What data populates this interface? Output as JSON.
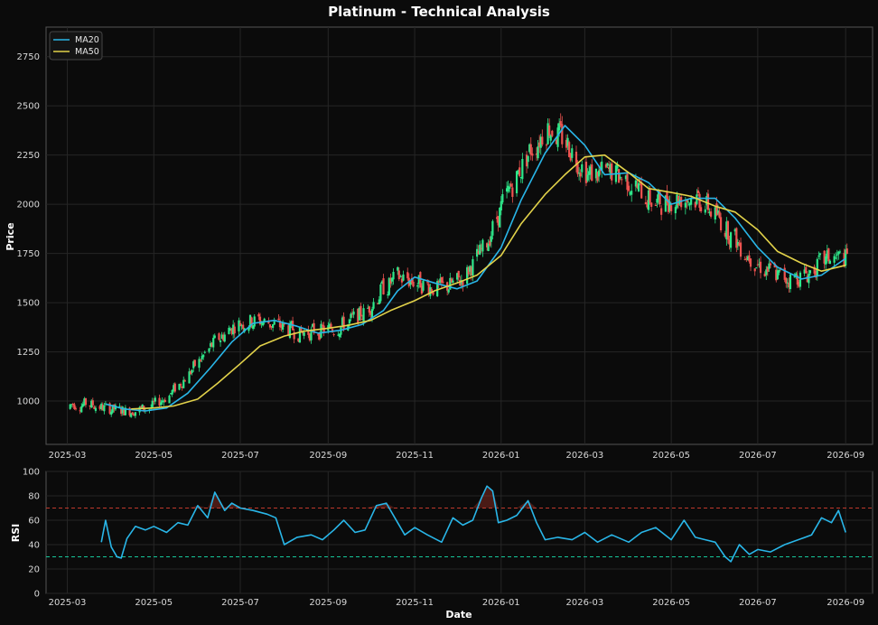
{
  "title": "Platinum - Technical Analysis",
  "colors": {
    "background": "#0b0b0b",
    "panel": "#0b0b0b",
    "up_candle": "#2ee88a",
    "down_candle": "#ef5350",
    "ma20": "#29b6e8",
    "ma50": "#e2d24a",
    "rsi": "#29b6e8",
    "overbought": "#c0392b",
    "oversold": "#16c79a"
  },
  "chart_data": [
    {
      "type": "candlestick",
      "ylabel": "Price",
      "xlabel": "",
      "ylim": [
        780,
        2900
      ],
      "xlim": [
        "2025-02-14",
        "2026-09-20"
      ],
      "yticks": [
        1000,
        1250,
        1500,
        1750,
        2000,
        2250,
        2500,
        2750
      ],
      "xticks": [
        "2025-03",
        "2025-05",
        "2025-07",
        "2025-09",
        "2025-11",
        "2026-01",
        "2026-03",
        "2026-05",
        "2026-07",
        "2026-09"
      ],
      "grid": true,
      "legend_position": "top-left",
      "series": [
        {
          "name": "MA20",
          "x": [
            "2025-03-28",
            "2025-04-10",
            "2025-04-25",
            "2025-05-10",
            "2025-05-25",
            "2025-06-10",
            "2025-06-25",
            "2025-07-10",
            "2025-07-25",
            "2025-08-10",
            "2025-08-25",
            "2025-09-10",
            "2025-09-25",
            "2025-10-10",
            "2025-10-20",
            "2025-11-01",
            "2025-11-15",
            "2025-12-01",
            "2025-12-15",
            "2026-01-01",
            "2026-01-15",
            "2026-02-01",
            "2026-02-15",
            "2026-03-01",
            "2026-03-15",
            "2026-04-01",
            "2026-04-15",
            "2026-05-01",
            "2026-05-15",
            "2026-06-01",
            "2026-06-15",
            "2026-07-01",
            "2026-07-15",
            "2026-08-01",
            "2026-08-15",
            "2026-09-01"
          ],
          "values": [
            985,
            960,
            950,
            965,
            1040,
            1170,
            1300,
            1395,
            1410,
            1380,
            1345,
            1360,
            1390,
            1460,
            1560,
            1630,
            1600,
            1570,
            1610,
            1780,
            2020,
            2260,
            2400,
            2300,
            2150,
            2160,
            2110,
            2000,
            2030,
            2030,
            1930,
            1780,
            1680,
            1620,
            1640,
            1725
          ]
        },
        {
          "name": "MA50",
          "x": [
            "2025-04-15",
            "2025-05-01",
            "2025-05-15",
            "2025-06-01",
            "2025-06-15",
            "2025-07-01",
            "2025-07-15",
            "2025-08-01",
            "2025-08-15",
            "2025-09-01",
            "2025-09-15",
            "2025-10-01",
            "2025-10-15",
            "2025-11-01",
            "2025-11-15",
            "2025-12-01",
            "2025-12-15",
            "2026-01-01",
            "2026-01-15",
            "2026-02-01",
            "2026-02-15",
            "2026-03-01",
            "2026-03-15",
            "2026-04-01",
            "2026-04-15",
            "2026-05-01",
            "2026-05-15",
            "2026-06-01",
            "2026-06-15",
            "2026-07-01",
            "2026-07-15",
            "2026-08-01",
            "2026-08-15",
            "2026-09-01"
          ],
          "values": [
            960,
            965,
            975,
            1010,
            1090,
            1190,
            1280,
            1330,
            1355,
            1370,
            1385,
            1410,
            1460,
            1510,
            1560,
            1600,
            1640,
            1740,
            1900,
            2050,
            2150,
            2240,
            2250,
            2160,
            2080,
            2060,
            2040,
            1990,
            1960,
            1870,
            1760,
            1700,
            1660,
            1690
          ]
        }
      ]
    },
    {
      "type": "line",
      "ylabel": "RSI",
      "xlabel": "Date",
      "ylim": [
        0,
        100
      ],
      "yticks": [
        0,
        20,
        40,
        60,
        80,
        100
      ],
      "xticks": [
        "2025-03",
        "2025-05",
        "2025-07",
        "2025-09",
        "2025-11",
        "2026-01",
        "2026-03",
        "2026-05",
        "2026-07",
        "2026-09"
      ],
      "reference_lines": [
        70,
        30
      ],
      "series": [
        {
          "name": "",
          "x": [
            "2025-03-25",
            "2025-03-28",
            "2025-04-01",
            "2025-04-05",
            "2025-04-08",
            "2025-04-12",
            "2025-04-18",
            "2025-04-25",
            "2025-05-01",
            "2025-05-10",
            "2025-05-18",
            "2025-05-25",
            "2025-06-01",
            "2025-06-08",
            "2025-06-13",
            "2025-06-20",
            "2025-06-25",
            "2025-07-01",
            "2025-07-10",
            "2025-07-20",
            "2025-07-26",
            "2025-08-01",
            "2025-08-10",
            "2025-08-20",
            "2025-08-28",
            "2025-09-05",
            "2025-09-12",
            "2025-09-20",
            "2025-09-27",
            "2025-10-05",
            "2025-10-12",
            "2025-10-18",
            "2025-10-25",
            "2025-11-01",
            "2025-11-10",
            "2025-11-20",
            "2025-11-28",
            "2025-12-05",
            "2025-12-12",
            "2025-12-18",
            "2025-12-22",
            "2025-12-26",
            "2025-12-30",
            "2026-01-05",
            "2026-01-12",
            "2026-01-20",
            "2026-01-26",
            "2026-02-01",
            "2026-02-10",
            "2026-02-20",
            "2026-03-01",
            "2026-03-10",
            "2026-03-20",
            "2026-04-01",
            "2026-04-10",
            "2026-04-20",
            "2026-05-01",
            "2026-05-10",
            "2026-05-18",
            "2026-05-25",
            "2026-06-01",
            "2026-06-08",
            "2026-06-12",
            "2026-06-18",
            "2026-06-25",
            "2026-07-01",
            "2026-07-10",
            "2026-07-20",
            "2026-08-01",
            "2026-08-08",
            "2026-08-15",
            "2026-08-22",
            "2026-08-27",
            "2026-09-01"
          ],
          "values": [
            42,
            60,
            38,
            30,
            29,
            45,
            55,
            52,
            55,
            50,
            58,
            56,
            72,
            62,
            83,
            68,
            74,
            70,
            68,
            65,
            62,
            40,
            46,
            48,
            44,
            52,
            60,
            50,
            52,
            72,
            74,
            62,
            48,
            54,
            48,
            42,
            62,
            56,
            60,
            78,
            88,
            84,
            58,
            60,
            64,
            76,
            58,
            44,
            46,
            44,
            50,
            42,
            48,
            42,
            50,
            54,
            44,
            60,
            46,
            44,
            42,
            30,
            26,
            40,
            32,
            36,
            34,
            40,
            45,
            48,
            62,
            58,
            68,
            50
          ]
        }
      ]
    }
  ]
}
